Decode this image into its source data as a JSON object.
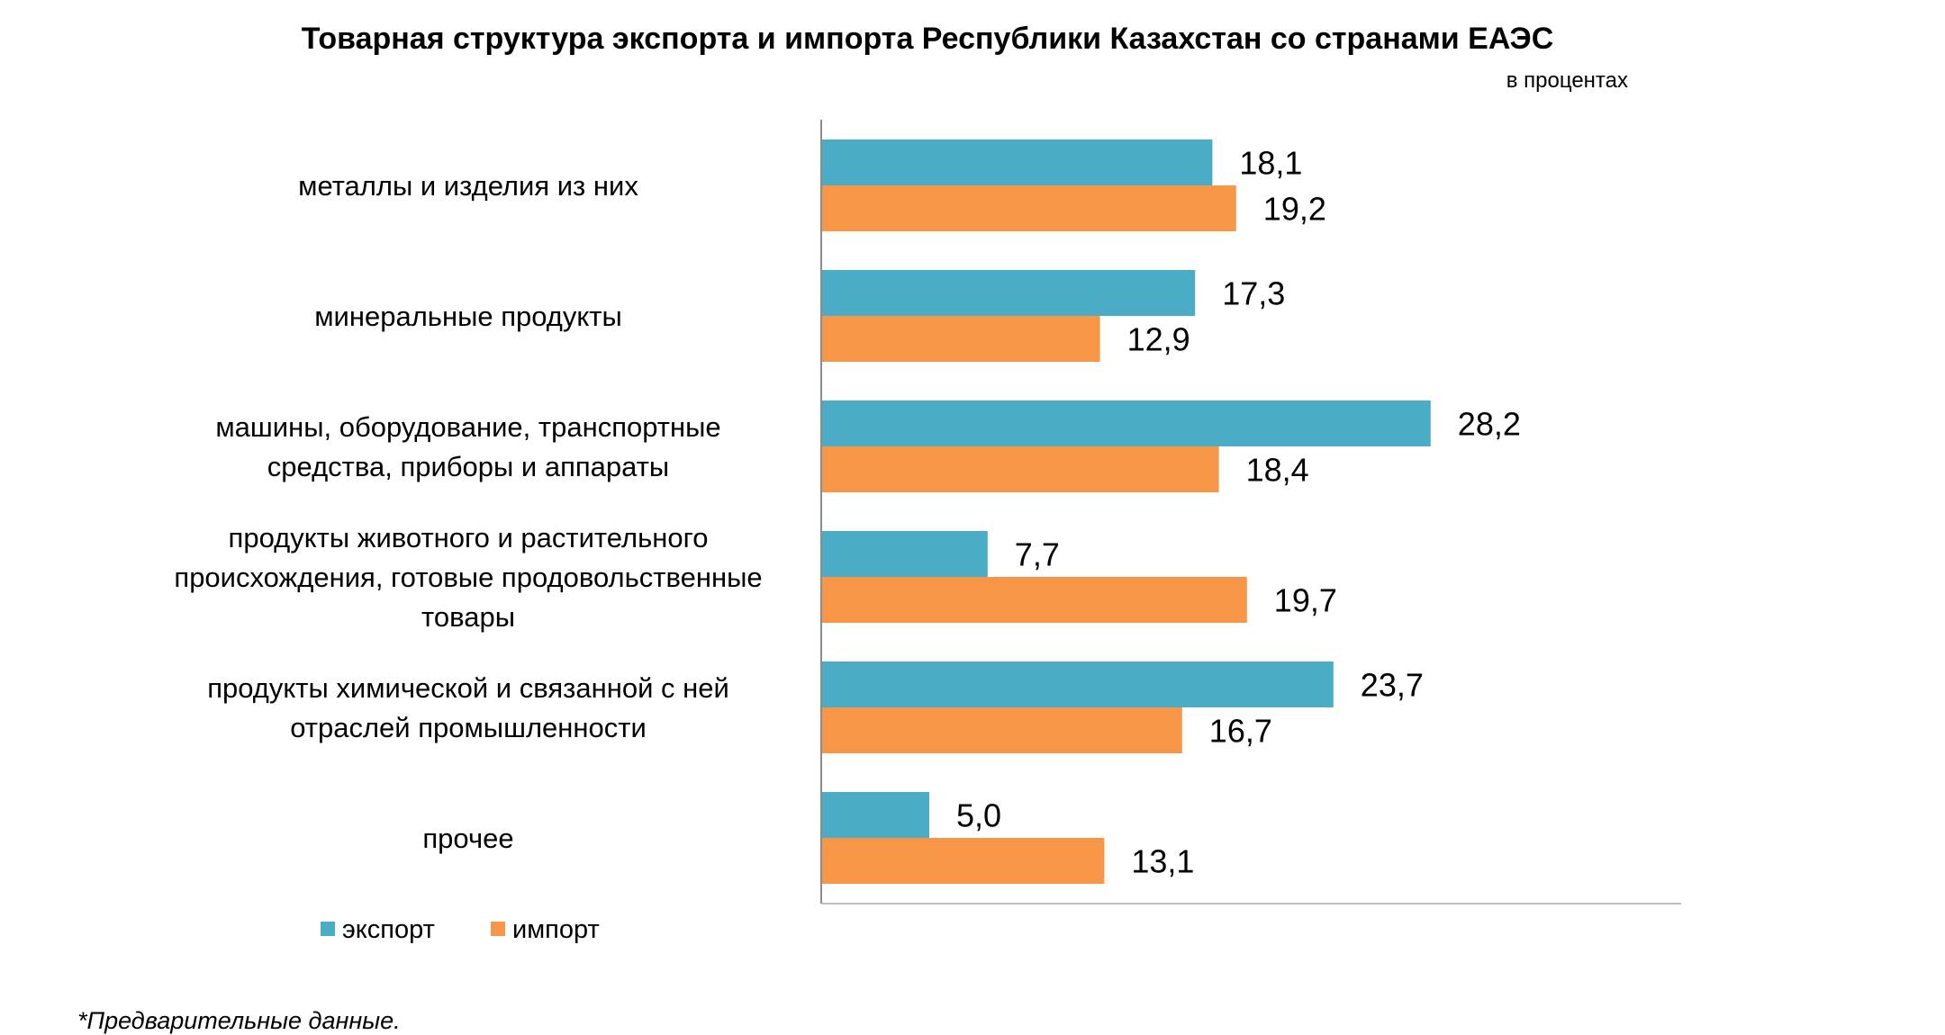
{
  "chart_data": {
    "type": "bar",
    "orientation": "horizontal",
    "title": "Товарная структура экспорта и импорта Республики Казахстан со странами ЕАЭС",
    "subtitle": "в процентах",
    "categories": [
      "металлы и изделия  из них",
      "минеральные продукты",
      "машины, оборудование, транспортные средства, приборы и аппараты",
      "продукты животного и растительного происхождения, готовые продовольственные товары",
      "продукты химической и связанной с ней отраслей промышленности",
      "прочее"
    ],
    "category_lines": [
      [
        "металлы и изделия  из них"
      ],
      [
        "минеральные продукты"
      ],
      [
        "машины, оборудование, транспортные",
        "средства, приборы и аппараты"
      ],
      [
        "продукты животного и растительного",
        "происхождения, готовые продовольственные",
        "товары"
      ],
      [
        "продукты химической и связанной с ней",
        "отраслей промышленности"
      ],
      [
        "прочее"
      ]
    ],
    "series": [
      {
        "name": "экспорт",
        "color": "#4bacc6",
        "values": [
          18.1,
          17.3,
          28.2,
          7.7,
          23.7,
          5.0
        ],
        "labels": [
          "18,1",
          "17,3",
          "28,2",
          "7,7",
          "23,7",
          "5,0"
        ]
      },
      {
        "name": "импорт",
        "color": "#f79646",
        "values": [
          19.2,
          12.9,
          18.4,
          19.7,
          16.7,
          13.1
        ],
        "labels": [
          "19,2",
          "12,9",
          "18,4",
          "19,7",
          "16,7",
          "13,1"
        ]
      }
    ],
    "xlim": [
      0,
      40
    ],
    "grid": false,
    "legend_position": "bottom-left"
  },
  "footnote": "*Предварительные данные."
}
